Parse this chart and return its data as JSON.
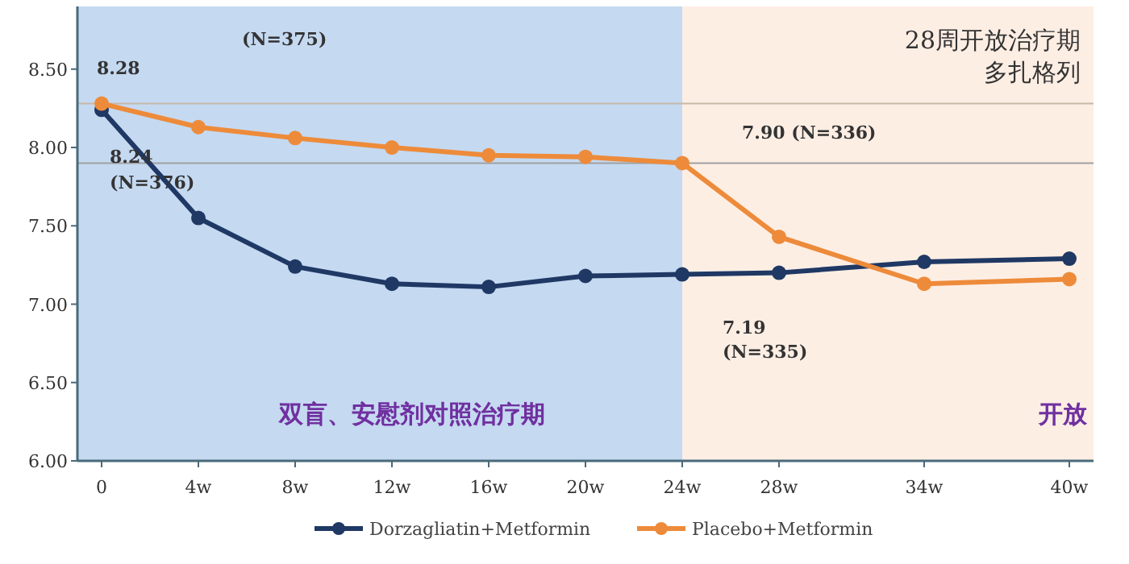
{
  "chart_data": {
    "type": "line",
    "xlim": [
      -1,
      41
    ],
    "ylim": [
      6.0,
      8.9
    ],
    "xticks": [
      {
        "value": 0,
        "label": "0"
      },
      {
        "value": 4,
        "label": "4w"
      },
      {
        "value": 8,
        "label": "8w"
      },
      {
        "value": 12,
        "label": "12w"
      },
      {
        "value": 16,
        "label": "16w"
      },
      {
        "value": 20,
        "label": "20w"
      },
      {
        "value": 24,
        "label": "24w"
      },
      {
        "value": 28,
        "label": "28w"
      },
      {
        "value": 34,
        "label": "34w"
      },
      {
        "value": 40,
        "label": "40w"
      }
    ],
    "yticks": [
      {
        "value": 6.0,
        "label": "6.00"
      },
      {
        "value": 6.5,
        "label": "6.50"
      },
      {
        "value": 7.0,
        "label": "7.00"
      },
      {
        "value": 7.5,
        "label": "7.50"
      },
      {
        "value": 8.0,
        "label": "8.00"
      },
      {
        "value": 8.5,
        "label": "8.50"
      }
    ],
    "series": [
      {
        "name": "Dorzagliatin+Metformin",
        "color": "#1f3864",
        "x": [
          0,
          4,
          8,
          12,
          16,
          20,
          24,
          28,
          34,
          40
        ],
        "values": [
          8.24,
          7.55,
          7.24,
          7.13,
          7.11,
          7.18,
          7.19,
          7.2,
          7.27,
          7.29
        ]
      },
      {
        "name": "Placebo+Metformin",
        "color": "#ed8b3a",
        "x": [
          0,
          4,
          8,
          12,
          16,
          20,
          24,
          28,
          34,
          40
        ],
        "values": [
          8.28,
          8.13,
          8.06,
          8.0,
          7.95,
          7.94,
          7.9,
          7.43,
          7.13,
          7.16
        ]
      }
    ],
    "bands": [
      {
        "axis": "x",
        "from": -1,
        "to": 24,
        "label": "双盲、安慰剂对照治疗期",
        "color": "#c5d9f1"
      },
      {
        "axis": "x",
        "from": 24,
        "to": 41,
        "label": "开放",
        "color": "#fdeee4"
      }
    ],
    "ref_lines": [
      {
        "axis": "y",
        "value": 8.28,
        "color": "#c8b8a8"
      },
      {
        "axis": "y",
        "value": 7.9,
        "color": "#a0a0a0"
      }
    ],
    "annotations": [
      "8.28",
      "(N=375)",
      "8.24",
      "(N=376)",
      "7.90 (N=336)",
      "7.19",
      "(N=335)",
      "28周开放治疗期",
      "多扎格列"
    ],
    "marker": "circle",
    "line_style": "solid",
    "grid": false,
    "legend": "bottom"
  }
}
